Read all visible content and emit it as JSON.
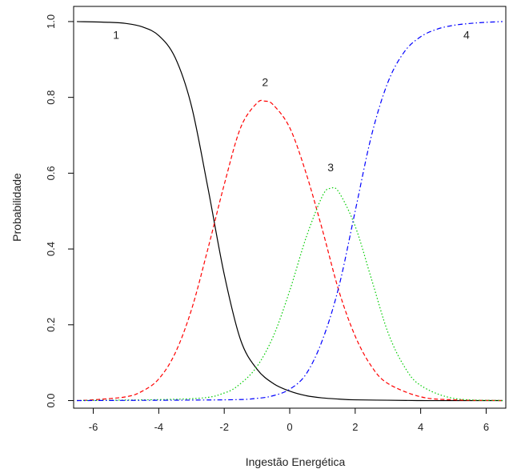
{
  "chart_data": {
    "type": "line",
    "title": "",
    "xlabel": "Ingestão Energética",
    "ylabel": "Probabilidade",
    "xlim": [
      -6.6,
      6.6
    ],
    "ylim": [
      -0.02,
      1.04
    ],
    "xticks": [
      -6,
      -4,
      -2,
      0,
      2,
      4,
      6
    ],
    "xtick_labels": [
      "-6",
      "-4",
      "-2",
      "0",
      "2",
      "4",
      "6"
    ],
    "yticks": [
      0.0,
      0.2,
      0.4,
      0.6,
      0.8,
      1.0
    ],
    "ytick_labels": [
      "0.0",
      "0.2",
      "0.4",
      "0.6",
      "0.8",
      "1.0"
    ],
    "grid": false,
    "legend": false,
    "series": [
      {
        "label": "1",
        "color": "#000000",
        "dash": "solid",
        "x": [
          -6.5,
          -5.5,
          -5.0,
          -4.5,
          -4.0,
          -3.5,
          -3.0,
          -2.5,
          -2.0,
          -1.5,
          -1.0,
          -0.5,
          0.0,
          0.5,
          1.0,
          1.5,
          2.0,
          3.0,
          4.0,
          5.0,
          6.5
        ],
        "y": [
          1.0,
          0.998,
          0.995,
          0.986,
          0.963,
          0.905,
          0.777,
          0.562,
          0.333,
          0.16,
          0.083,
          0.045,
          0.025,
          0.013,
          0.007,
          0.004,
          0.002,
          0.001,
          0.0,
          0.0,
          0.0
        ]
      },
      {
        "label": "2",
        "color": "#ff0000",
        "dash": "dashed",
        "x": [
          -6.5,
          -6.0,
          -5.0,
          -4.5,
          -4.0,
          -3.5,
          -3.0,
          -2.5,
          -2.0,
          -1.5,
          -1.0,
          -0.75,
          -0.5,
          0.0,
          0.5,
          1.0,
          1.5,
          2.0,
          2.5,
          3.0,
          4.0,
          5.0,
          6.5
        ],
        "y": [
          0.0,
          0.002,
          0.01,
          0.025,
          0.057,
          0.125,
          0.24,
          0.4,
          0.57,
          0.72,
          0.785,
          0.79,
          0.78,
          0.72,
          0.6,
          0.45,
          0.29,
          0.17,
          0.09,
          0.045,
          0.01,
          0.002,
          0.0
        ]
      },
      {
        "label": "3",
        "color": "#00cc00",
        "dash": "dotted",
        "x": [
          -6.5,
          -3.0,
          -2.0,
          -1.5,
          -1.0,
          -0.5,
          0.0,
          0.5,
          1.0,
          1.25,
          1.5,
          2.0,
          2.5,
          3.0,
          3.5,
          4.0,
          5.0,
          6.5
        ],
        "y": [
          0.0,
          0.005,
          0.02,
          0.045,
          0.09,
          0.17,
          0.29,
          0.43,
          0.54,
          0.56,
          0.55,
          0.46,
          0.32,
          0.18,
          0.09,
          0.04,
          0.006,
          0.0
        ],
        "_": ""
      },
      {
        "label": "4",
        "color": "#0000ff",
        "dash": "dashdot",
        "x": [
          -6.5,
          -2.0,
          -1.0,
          -0.5,
          0.0,
          0.5,
          1.0,
          1.5,
          2.0,
          2.5,
          3.0,
          3.5,
          4.0,
          4.5,
          5.0,
          5.5,
          6.0,
          6.5
        ],
        "y": [
          0.0,
          0.002,
          0.006,
          0.013,
          0.03,
          0.07,
          0.16,
          0.3,
          0.5,
          0.7,
          0.84,
          0.92,
          0.96,
          0.98,
          0.99,
          0.995,
          0.998,
          1.0
        ]
      }
    ]
  },
  "curve_labels": [
    {
      "text": "1",
      "x": -5.3,
      "y": 0.955
    },
    {
      "text": "2",
      "x": -0.75,
      "y": 0.83
    },
    {
      "text": "3",
      "x": 1.25,
      "y": 0.605
    },
    {
      "text": "4",
      "x": 5.4,
      "y": 0.955
    }
  ]
}
